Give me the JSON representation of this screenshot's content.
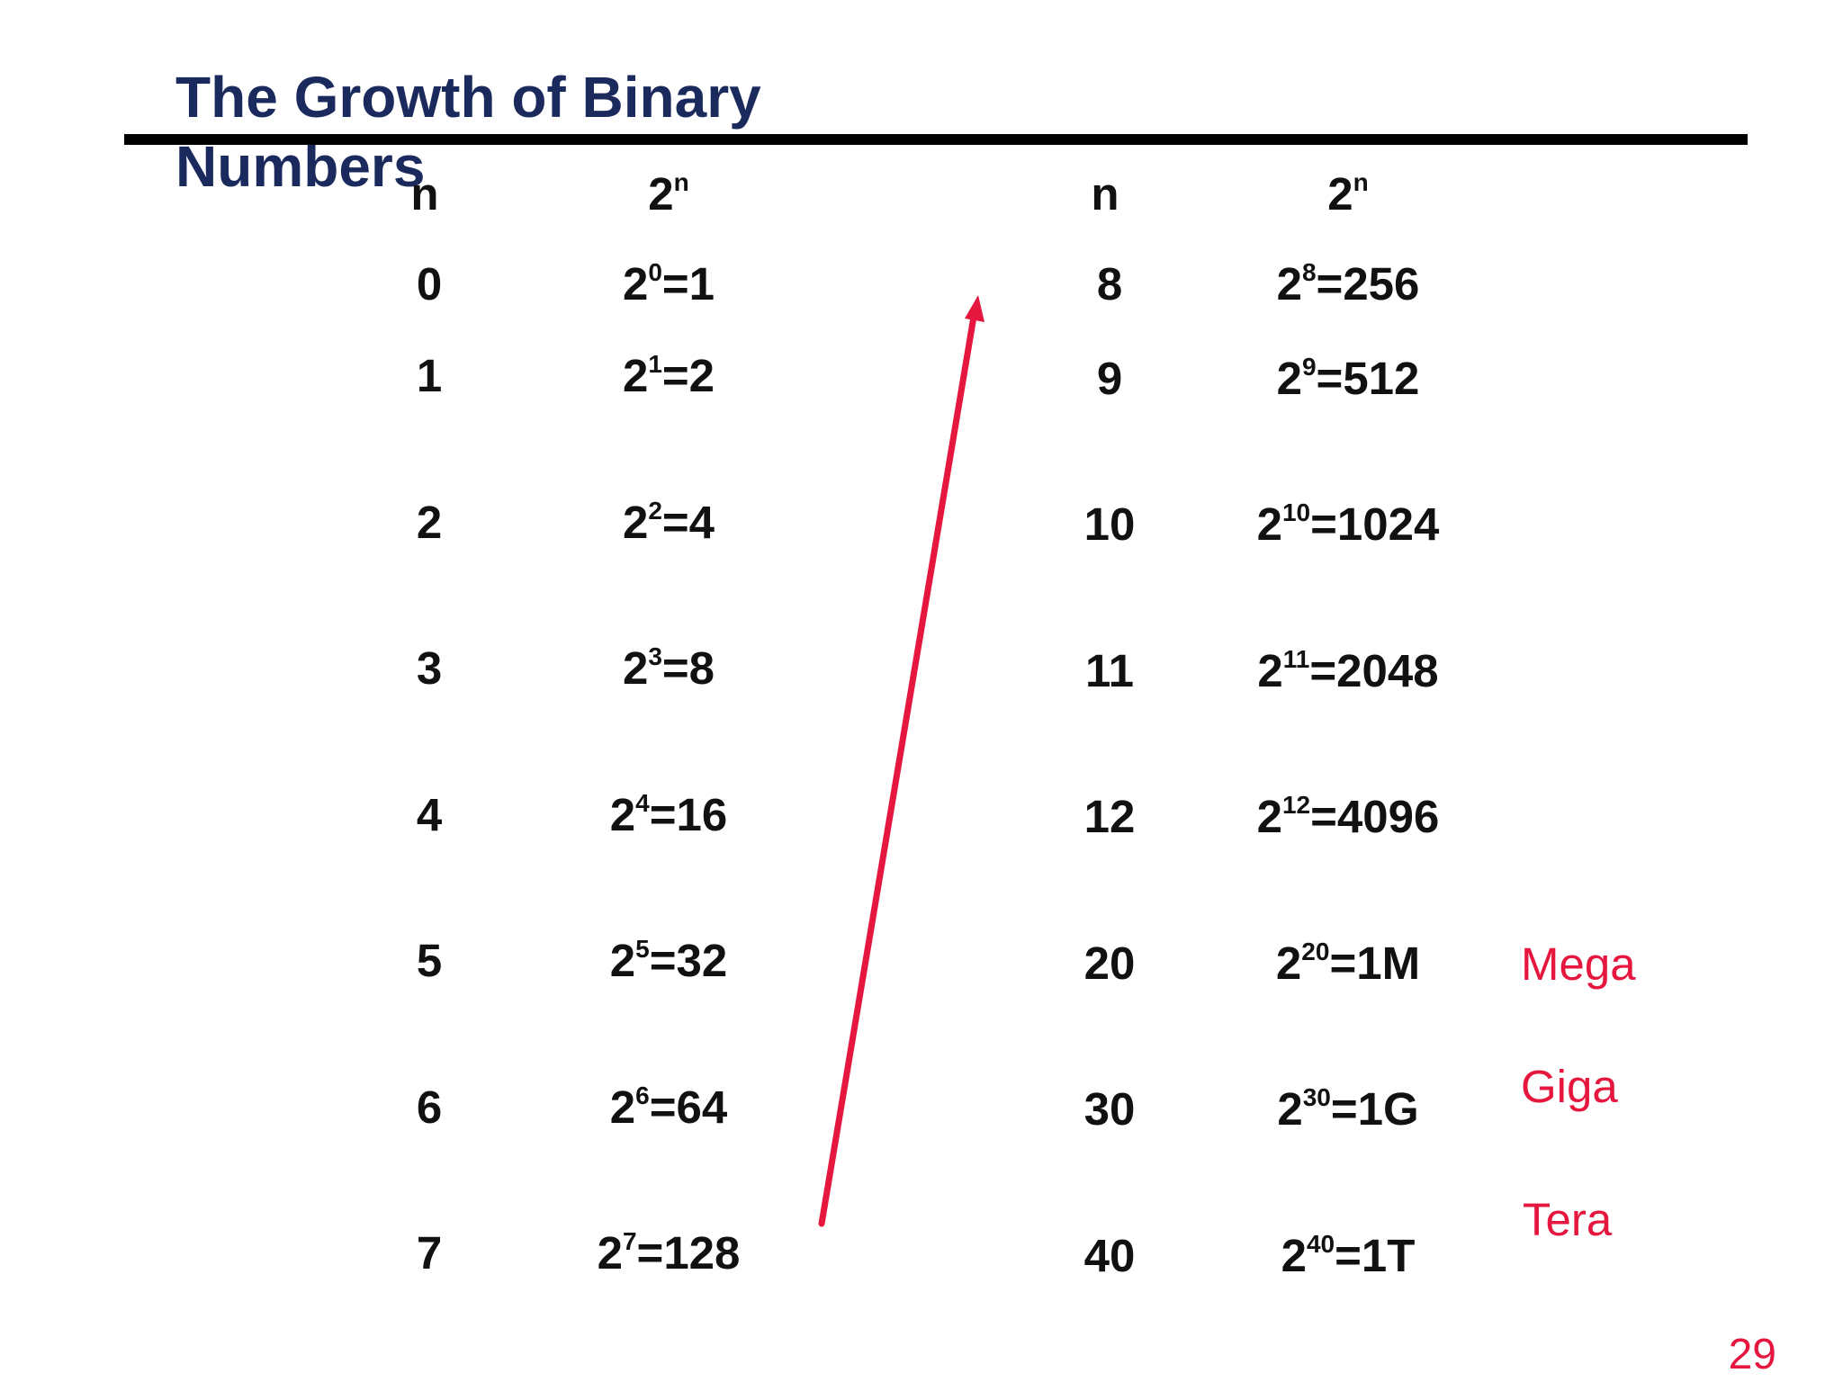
{
  "slide": {
    "title": "The Growth of Binary Numbers",
    "page_number": "29",
    "accent_color": "#e5173f",
    "title_color": "#1b2a5c"
  },
  "left_table": {
    "header_n": "n",
    "header_pow_base": "2",
    "header_pow_exp": "n",
    "rows": [
      {
        "n": "0",
        "base": "2",
        "exp": "0",
        "result": "=1"
      },
      {
        "n": "1",
        "base": "2",
        "exp": "1",
        "result": "=2"
      },
      {
        "n": "2",
        "base": "2",
        "exp": "2",
        "result": "=4"
      },
      {
        "n": "3",
        "base": "2",
        "exp": "3",
        "result": "=8"
      },
      {
        "n": "4",
        "base": "2",
        "exp": "4",
        "result": "=16"
      },
      {
        "n": "5",
        "base": "2",
        "exp": "5",
        "result": "=32"
      },
      {
        "n": "6",
        "base": "2",
        "exp": "6",
        "result": "=64"
      },
      {
        "n": "7",
        "base": "2",
        "exp": "7",
        "result": "=128"
      }
    ]
  },
  "right_table": {
    "header_n": "n",
    "header_pow_base": "2",
    "header_pow_exp": "n",
    "rows": [
      {
        "n": "8",
        "base": "2",
        "exp": "8",
        "result": "=256"
      },
      {
        "n": "9",
        "base": "2",
        "exp": "9",
        "result": "=512"
      },
      {
        "n": "10",
        "base": "2",
        "exp": "10",
        "result": "=1024"
      },
      {
        "n": "11",
        "base": "2",
        "exp": "11",
        "result": "=2048"
      },
      {
        "n": "12",
        "base": "2",
        "exp": "12",
        "result": "=4096"
      },
      {
        "n": "20",
        "base": "2",
        "exp": "20",
        "result": "=1M"
      },
      {
        "n": "30",
        "base": "2",
        "exp": "30",
        "result": "=1G"
      },
      {
        "n": "40",
        "base": "2",
        "exp": "40",
        "result": "=1T"
      }
    ]
  },
  "prefixes": {
    "mega": "Mega",
    "giga": "Giga",
    "tera": "Tera"
  }
}
